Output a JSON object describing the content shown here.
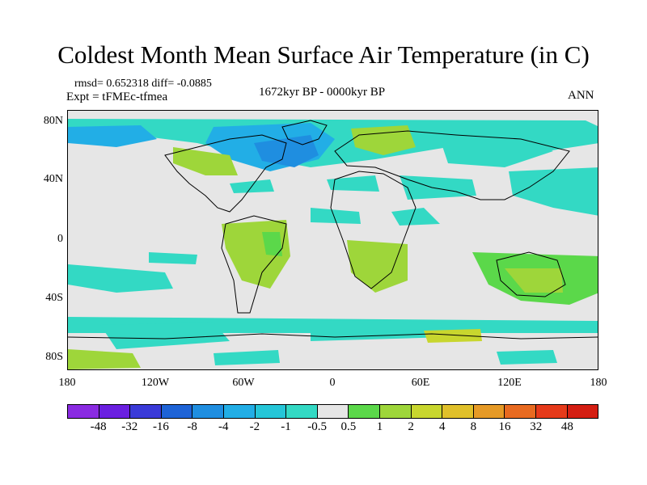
{
  "title": "Coldest Month Mean Surface Air Temperature (in C)",
  "stats": "rmsd= 0.652318 diff= -0.0885",
  "expt": "Expt = tFMEc-tfmea",
  "period": "1672kyr BP - 0000kyr BP",
  "season": "ANN",
  "lat_labels": [
    "80N",
    "40N",
    "0",
    "40S",
    "80S"
  ],
  "lon_labels": [
    "180",
    "120W",
    "60W",
    "0",
    "60E",
    "120E",
    "180"
  ],
  "colorbar": {
    "labels": [
      "-48",
      "-32",
      "-16",
      "-8",
      "-4",
      "-2",
      "-1",
      "-0.5",
      "0.5",
      "1",
      "2",
      "4",
      "8",
      "16",
      "32",
      "48"
    ],
    "colors": [
      "#8a2be2",
      "#6a1fe0",
      "#3a3ad8",
      "#1e63d6",
      "#1f8ee0",
      "#22aee6",
      "#25c6d8",
      "#33d9c4",
      "#e6e6e6",
      "#5bd84a",
      "#9ed63a",
      "#c8d62e",
      "#e0c02a",
      "#e69a26",
      "#e86a20",
      "#e63a1a",
      "#d41e12"
    ]
  },
  "colors": {
    "background": "#e6e6e6",
    "coast": "#000000"
  }
}
